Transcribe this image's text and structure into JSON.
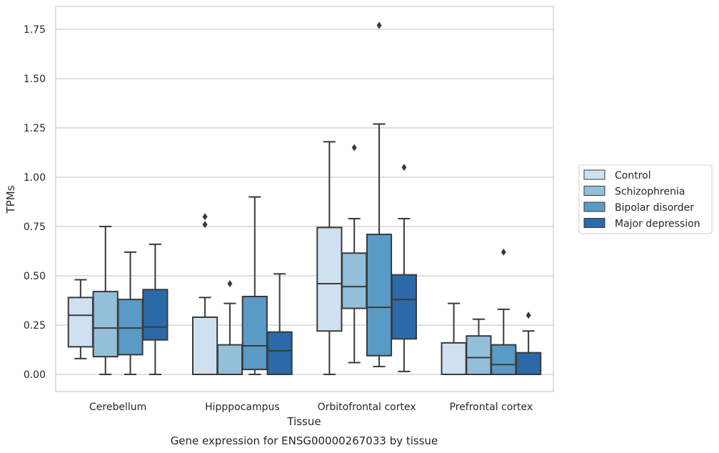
{
  "chart_data": {
    "type": "boxplot",
    "title": "",
    "caption": "Gene expression for ENSG00000267033 by tissue",
    "xlabel": "Tissue",
    "ylabel": "TPMs",
    "ylim": [
      -0.085,
      1.86
    ],
    "yticks": [
      0.0,
      0.25,
      0.5,
      0.75,
      1.0,
      1.25,
      1.5,
      1.75
    ],
    "ytick_labels": [
      "0.00",
      "0.25",
      "0.50",
      "0.75",
      "1.00",
      "1.25",
      "1.50",
      "1.75"
    ],
    "grid": "horizontal",
    "legend_position": "outside-right",
    "categories": [
      "Cerebellum",
      "Hipppocampus",
      "Orbitofrontal cortex",
      "Prefrontal cortex"
    ],
    "series": [
      {
        "name": "Control",
        "color": "#cfe0f0",
        "boxes": [
          {
            "whisker_low": 0.08,
            "q1": 0.14,
            "median": 0.3,
            "q3": 0.39,
            "whisker_high": 0.48,
            "outliers": []
          },
          {
            "whisker_low": 0.0,
            "q1": 0.0,
            "median": 0.0,
            "q3": 0.29,
            "whisker_high": 0.39,
            "outliers": [
              0.76,
              0.8
            ]
          },
          {
            "whisker_low": 0.0,
            "q1": 0.22,
            "median": 0.46,
            "q3": 0.745,
            "whisker_high": 1.18,
            "outliers": []
          },
          {
            "whisker_low": 0.0,
            "q1": 0.0,
            "median": 0.0,
            "q3": 0.16,
            "whisker_high": 0.36,
            "outliers": []
          }
        ]
      },
      {
        "name": "Schizophrenia",
        "color": "#93bfdb",
        "boxes": [
          {
            "whisker_low": 0.0,
            "q1": 0.09,
            "median": 0.235,
            "q3": 0.42,
            "whisker_high": 0.75,
            "outliers": []
          },
          {
            "whisker_low": 0.0,
            "q1": 0.0,
            "median": 0.0,
            "q3": 0.15,
            "whisker_high": 0.36,
            "outliers": [
              0.46
            ]
          },
          {
            "whisker_low": 0.06,
            "q1": 0.335,
            "median": 0.445,
            "q3": 0.615,
            "whisker_high": 0.79,
            "outliers": [
              1.15
            ]
          },
          {
            "whisker_low": 0.0,
            "q1": 0.0,
            "median": 0.085,
            "q3": 0.195,
            "whisker_high": 0.28,
            "outliers": []
          }
        ]
      },
      {
        "name": "Bipolar disorder",
        "color": "#5a9ac6",
        "boxes": [
          {
            "whisker_low": 0.0,
            "q1": 0.1,
            "median": 0.235,
            "q3": 0.38,
            "whisker_high": 0.62,
            "outliers": []
          },
          {
            "whisker_low": 0.0,
            "q1": 0.025,
            "median": 0.145,
            "q3": 0.395,
            "whisker_high": 0.9,
            "outliers": []
          },
          {
            "whisker_low": 0.04,
            "q1": 0.095,
            "median": 0.34,
            "q3": 0.71,
            "whisker_high": 1.27,
            "outliers": [
              1.77
            ]
          },
          {
            "whisker_low": 0.0,
            "q1": 0.0,
            "median": 0.05,
            "q3": 0.15,
            "whisker_high": 0.33,
            "outliers": [
              0.62
            ]
          }
        ]
      },
      {
        "name": "Major depression",
        "color": "#2b69a8",
        "boxes": [
          {
            "whisker_low": 0.0,
            "q1": 0.175,
            "median": 0.24,
            "q3": 0.43,
            "whisker_high": 0.66,
            "outliers": []
          },
          {
            "whisker_low": 0.0,
            "q1": 0.0,
            "median": 0.12,
            "q3": 0.215,
            "whisker_high": 0.51,
            "outliers": []
          },
          {
            "whisker_low": 0.015,
            "q1": 0.18,
            "median": 0.38,
            "q3": 0.505,
            "whisker_high": 0.79,
            "outliers": [
              1.05
            ]
          },
          {
            "whisker_low": 0.0,
            "q1": 0.0,
            "median": 0.0,
            "q3": 0.11,
            "whisker_high": 0.22,
            "outliers": [
              0.3
            ]
          }
        ]
      }
    ]
  }
}
